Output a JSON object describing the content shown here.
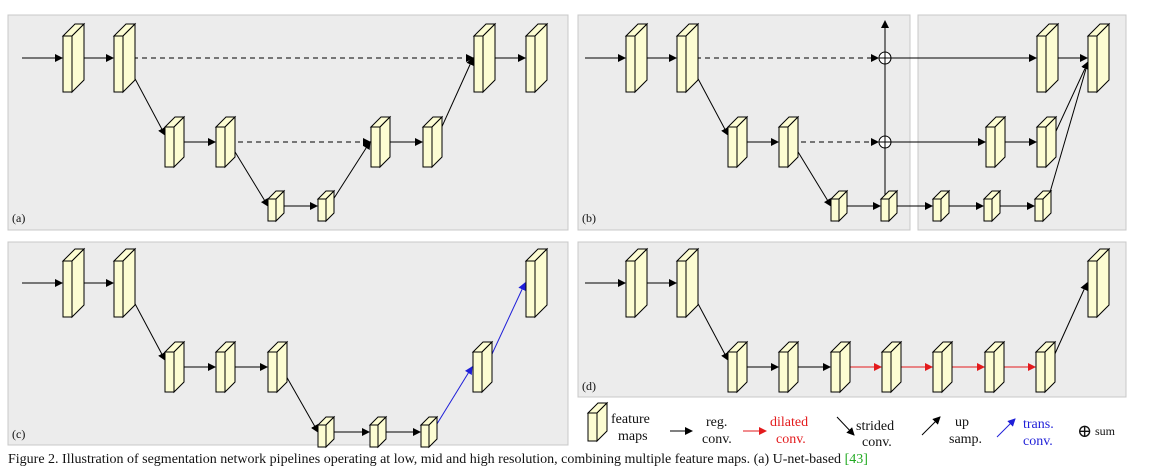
{
  "panels": [
    {
      "id": "a",
      "label": "(a)"
    },
    {
      "id": "b",
      "label": "(b)"
    },
    {
      "id": "c",
      "label": "(c)"
    },
    {
      "id": "d",
      "label": "(d)"
    }
  ],
  "legend": {
    "feature_maps": [
      "feature",
      "maps"
    ],
    "reg_conv": [
      "reg.",
      "conv."
    ],
    "dilated_conv": [
      "dilated",
      "conv."
    ],
    "strided_conv": [
      "strided",
      "conv."
    ],
    "up_samp": [
      "up",
      "samp."
    ],
    "trans_conv": [
      "trans.",
      "conv."
    ],
    "sum_symbol": "⊕",
    "sum": "sum"
  },
  "caption": {
    "text": "Figure 2. Illustration of segmentation network pipelines operating at low, mid and high resolution, combining multiple feature maps. (a) U-net-based ",
    "ref": "[43]"
  },
  "colors": {
    "panel_bg": "#ececec",
    "box_fill": "#fcfcd2",
    "red": "#e31a1c",
    "blue": "#1f1fd8",
    "ref_green": "#22aa22"
  }
}
